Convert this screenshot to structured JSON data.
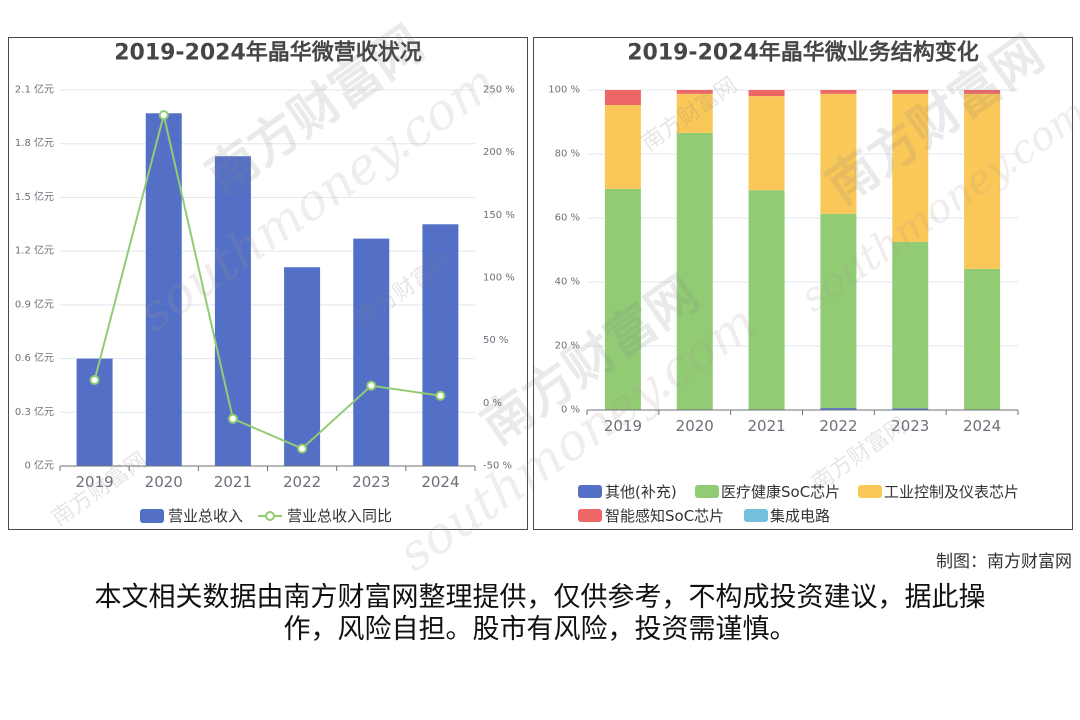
{
  "chart_data": [
    {
      "type": "bar",
      "title": "2019-2024年晶华微营收状况",
      "categories": [
        "2019",
        "2020",
        "2021",
        "2022",
        "2023",
        "2024"
      ],
      "series": [
        {
          "name": "营业总收入",
          "type": "bar",
          "axis": "left",
          "values": [
            0.6,
            1.97,
            1.73,
            1.11,
            1.27,
            1.35
          ],
          "color": "#5470c6"
        },
        {
          "name": "营业总收入同比",
          "type": "line",
          "axis": "right",
          "values": [
            18.6,
            230.0,
            -12.3,
            -36.1,
            14.1,
            6.1
          ],
          "color": "#91cc75"
        }
      ],
      "y_left": {
        "min": 0,
        "max": 2.1,
        "tick_labels": [
          "0 亿元",
          "0.3 亿元",
          "0.6 亿元",
          "0.9 亿元",
          "1.2 亿元",
          "1.5 亿元",
          "1.8 亿元",
          "2.1 亿元"
        ]
      },
      "y_right": {
        "min": -50,
        "max": 250,
        "tick_labels": [
          "-50 %",
          "0 %",
          "50 %",
          "100 %",
          "150 %",
          "200 %",
          "250 %"
        ]
      },
      "grid": true,
      "legend": "bottom"
    },
    {
      "type": "bar",
      "stacked": true,
      "title": "2019-2024年晶华微业务结构变化",
      "categories": [
        "2019",
        "2020",
        "2021",
        "2022",
        "2023",
        "2024"
      ],
      "series": [
        {
          "name": "其他(补充)",
          "values": [
            0,
            0,
            0,
            0.6,
            0.5,
            0
          ],
          "color": "#5470c6"
        },
        {
          "name": "医疗健康SoC芯片",
          "values": [
            69.1,
            86.6,
            68.7,
            60.7,
            52.0,
            44.1
          ],
          "color": "#91cc75"
        },
        {
          "name": "工业控制及仪表芯片",
          "values": [
            26.2,
            12.2,
            29.4,
            37.5,
            46.3,
            54.7
          ],
          "color": "#fac858"
        },
        {
          "name": "智能感知SoC芯片",
          "values": [
            4.7,
            1.2,
            1.9,
            1.2,
            1.2,
            1.2
          ],
          "color": "#ee6666"
        },
        {
          "name": "集成电路",
          "values": [
            0,
            0,
            0,
            0,
            0,
            0
          ],
          "color": "#73c0de"
        }
      ],
      "y": {
        "min": 0,
        "max": 100,
        "tick_labels": [
          "0 %",
          "20 %",
          "40 %",
          "60 %",
          "80 %",
          "100 %"
        ]
      },
      "grid": true,
      "legend": "bottom"
    }
  ],
  "credit": "制图：南方财富网",
  "disclaimer": {
    "line1": "本文相关数据由南方财富网整理提供，仅供参考，不构成投资建议，据此操",
    "line2": "作，风险自担。股市有风险，投资需谨慎。"
  },
  "watermark": {
    "cn": "南方财富网",
    "en": "southmoney.com"
  }
}
